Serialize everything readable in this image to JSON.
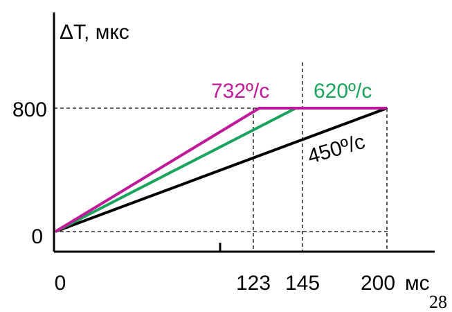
{
  "chart_data": {
    "type": "line",
    "ylabel": "ΔT, мкс",
    "xlabel": "мс",
    "xlim": [
      0,
      200
    ],
    "ylim": [
      0,
      800
    ],
    "x_ticks": [
      "0",
      "123",
      "145",
      "200"
    ],
    "y_ticks": [
      "0",
      "800"
    ],
    "series": [
      {
        "name": "732º/с",
        "color": "#c0189a",
        "x": [
          0,
          123,
          200
        ],
        "y": [
          0,
          800,
          800
        ]
      },
      {
        "name": "620º/с",
        "color": "#1aa35a",
        "x": [
          0,
          145,
          200
        ],
        "y": [
          0,
          800,
          800
        ]
      },
      {
        "name": "450º/с",
        "color": "#000000",
        "x": [
          0,
          200
        ],
        "y": [
          0,
          800
        ]
      }
    ]
  },
  "page_number": "28"
}
